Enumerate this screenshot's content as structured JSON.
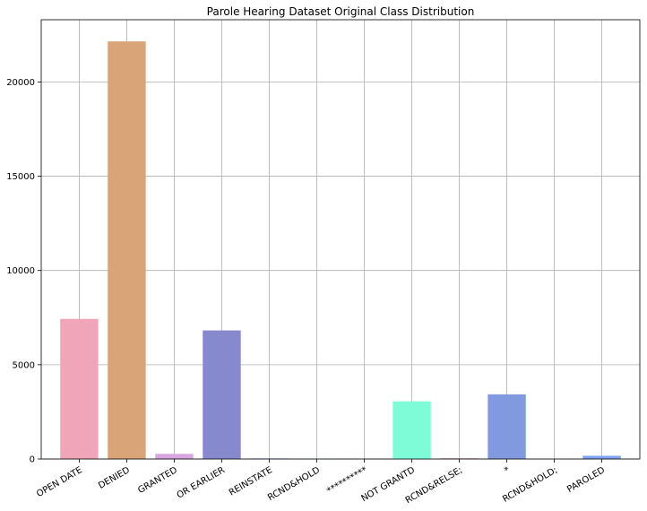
{
  "chart_data": {
    "type": "bar",
    "title": "Parole Hearing Dataset Original Class Distribution",
    "xlabel": "",
    "ylabel": "",
    "categories": [
      "OPEN DATE",
      "DENIED",
      "GRANTED",
      "OR EARLIER",
      "REINSTATE",
      "RCND&HOLD",
      "**********",
      "NOT GRANTD",
      "RCND&RELSE;",
      "*",
      "RCND&HOLD;",
      "PAROLED"
    ],
    "values": [
      7430,
      22150,
      270,
      6820,
      30,
      20,
      10,
      3060,
      40,
      3430,
      15,
      170
    ],
    "colors": [
      "#f0a5b8",
      "#d9a477",
      "#d9a5e0",
      "#8789cf",
      "#8aa4f0",
      "#8ff59d",
      "#f5b8a8",
      "#7dfcd7",
      "#d9a5b8",
      "#8099df",
      "#c8d9a0",
      "#7ea3f2"
    ],
    "ylim": [
      0,
      23300
    ],
    "yticks": [
      0,
      5000,
      10000,
      15000,
      20000
    ],
    "grid": true,
    "legend": "none"
  }
}
